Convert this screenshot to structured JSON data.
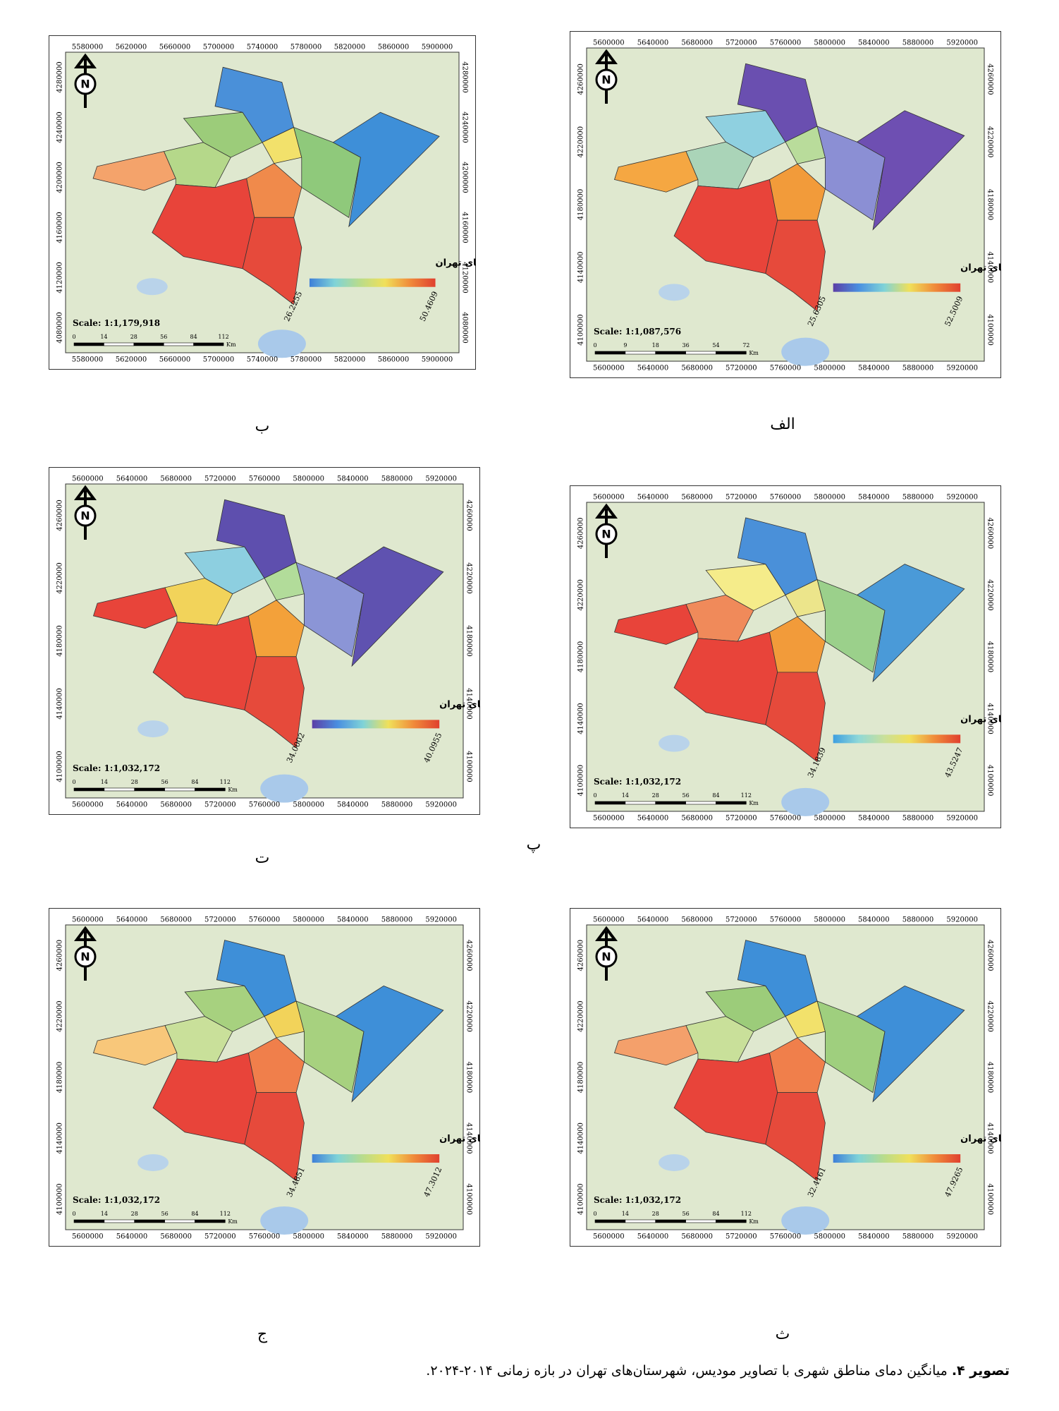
{
  "north_label": "N",
  "panels": [
    {
      "label": "الف",
      "x_ticks": [
        "5600000",
        "5640000",
        "5680000",
        "5720000",
        "5760000",
        "5800000",
        "5840000",
        "5880000",
        "5920000"
      ],
      "y_ticks": [
        "4260000",
        "4220000",
        "4180000",
        "4140000",
        "4100000"
      ],
      "legend_title": "دمای منطقه‌ای شهرستان های تهران",
      "legend_min": "25.6305",
      "legend_max": "52.5009",
      "legend_colors": [
        "#5b3ea6",
        "#4a8fe0",
        "#7fd3d8",
        "#f0e05a",
        "#f08a3a",
        "#e0402f"
      ],
      "scale": "Scale: 1:1,087,576",
      "scale_bar": [
        "0",
        "9",
        "18",
        "36",
        "54",
        "72"
      ],
      "unit": "Km",
      "colors": [
        "#f5a742",
        "#aad4b8",
        "#8fd0e0",
        "#6a4fb0",
        "#b9dc9b",
        "#8b8fd4",
        "#6e4fb2",
        "#e8443a",
        "#f29b3a",
        "#e64a3b"
      ]
    },
    {
      "label": "ب",
      "x_ticks": [
        "5580000",
        "5620000",
        "5660000",
        "5700000",
        "5740000",
        "5780000",
        "5820000",
        "5860000",
        "5900000"
      ],
      "y_ticks": [
        "4280000",
        "4240000",
        "4200000",
        "4160000",
        "4120000",
        "4080000"
      ],
      "legend_title": "دمای منطقه‌ای شهرستان های تهران",
      "legend_min": "26.2255",
      "legend_max": "50.4609",
      "legend_colors": [
        "#3e7fd8",
        "#7fd3d8",
        "#b9dc8b",
        "#f0e05a",
        "#f08a3a",
        "#e0402f"
      ],
      "scale": "Scale: 1:1,179,918",
      "scale_bar": [
        "0",
        "14",
        "28",
        "56",
        "84",
        "112"
      ],
      "unit": "Km",
      "colors": [
        "#f4a36b",
        "#b5d88a",
        "#9ccc7a",
        "#4a90d9",
        "#f2e16b",
        "#8fc97b",
        "#3e8fd8",
        "#e8443a",
        "#f08a4b",
        "#e64a3b"
      ]
    },
    {
      "label": "پ",
      "x_ticks": [
        "5600000",
        "5640000",
        "5680000",
        "5720000",
        "5760000",
        "5800000",
        "5840000",
        "5880000",
        "5920000"
      ],
      "y_ticks": [
        "4260000",
        "4220000",
        "4180000",
        "4140000",
        "4100000"
      ],
      "legend_title": "دمای منطقه‌ای شهرستان های تهران",
      "legend_min": "34.1839",
      "legend_max": "43.5247",
      "legend_colors": [
        "#3e9fe0",
        "#8fd8d8",
        "#c9e09a",
        "#f0e05a",
        "#f08a3a",
        "#e0402f"
      ],
      "scale": "Scale: 1:1,032,172",
      "scale_bar": [
        "0",
        "14",
        "28",
        "56",
        "84",
        "112"
      ],
      "unit": "Km",
      "colors": [
        "#e8443a",
        "#f08a5a",
        "#f5ec8a",
        "#4a90d9",
        "#ece58b",
        "#9bd08b",
        "#4a9ad8",
        "#e8443a",
        "#f29b3a",
        "#e64a3b"
      ]
    },
    {
      "label": "ت",
      "x_ticks": [
        "5600000",
        "5640000",
        "5680000",
        "5720000",
        "5760000",
        "5800000",
        "5840000",
        "5880000",
        "5920000"
      ],
      "y_ticks": [
        "4260000",
        "4220000",
        "4180000",
        "4140000",
        "4100000"
      ],
      "legend_title": "دمای منطقه‌ای شهرستان های تهران",
      "legend_min": "34.0002",
      "legend_max": "40.0955",
      "legend_colors": [
        "#5b3ea6",
        "#4a8fe0",
        "#7fd3d8",
        "#f0e05a",
        "#f08a3a",
        "#e0402f"
      ],
      "scale": "Scale: 1:1,032,172",
      "scale_bar": [
        "0",
        "14",
        "28",
        "56",
        "84",
        "112"
      ],
      "unit": "Km",
      "colors": [
        "#e8443a",
        "#f2d35a",
        "#8dcfe0",
        "#5e4fae",
        "#b2dc9a",
        "#8b95d6",
        "#5f52b0",
        "#e8443a",
        "#f3a13a",
        "#e64a3b"
      ]
    },
    {
      "label": "ث",
      "x_ticks": [
        "5600000",
        "5640000",
        "5680000",
        "5720000",
        "5760000",
        "5800000",
        "5840000",
        "5880000",
        "5920000"
      ],
      "y_ticks": [
        "4260000",
        "4220000",
        "4180000",
        "4140000",
        "4100000"
      ],
      "legend_title": "دمای منطقه‌ای شهرستان های تهران",
      "legend_min": "32.4161",
      "legend_max": "47.9265",
      "legend_colors": [
        "#3e7fd8",
        "#7fd3d8",
        "#b9dc8b",
        "#f0e05a",
        "#f08a3a",
        "#e0402f"
      ],
      "scale": "Scale: 1:1,032,172",
      "scale_bar": [
        "0",
        "14",
        "28",
        "56",
        "84",
        "112"
      ],
      "unit": "Km",
      "colors": [
        "#f4a06b",
        "#c9e09a",
        "#9ccc7a",
        "#3e8fd8",
        "#f2e16b",
        "#9fcf7e",
        "#3e8fd8",
        "#e8443a",
        "#f07f4b",
        "#e64a3b"
      ]
    },
    {
      "label": "ج",
      "x_ticks": [
        "5600000",
        "5640000",
        "5680000",
        "5720000",
        "5760000",
        "5800000",
        "5840000",
        "5880000",
        "5920000"
      ],
      "y_ticks": [
        "4260000",
        "4220000",
        "4180000",
        "4140000",
        "4100000"
      ],
      "legend_title": "دمای منطقه‌ای شهرستان های تهران",
      "legend_min": "34.4851",
      "legend_max": "47.3012",
      "legend_colors": [
        "#3e7fd8",
        "#7fd3d8",
        "#b9dc8b",
        "#f0e05a",
        "#f08a3a",
        "#e0402f"
      ],
      "scale": "Scale: 1:1,032,172",
      "scale_bar": [
        "0",
        "14",
        "28",
        "56",
        "84",
        "112"
      ],
      "unit": "Km",
      "colors": [
        "#f8c77a",
        "#c9e09a",
        "#a7d17f",
        "#3e8fd8",
        "#f2d35a",
        "#a7d17f",
        "#3e8fd8",
        "#e8443a",
        "#f07f4b",
        "#e64a3b"
      ]
    }
  ],
  "caption": {
    "label": "تصویر ۴.",
    "text": "میانگین دمای مناطق شهری با تصاویر مودیس، شهرستان‌های تهران در بازه زمانی ۲۰۱۴-۲۰۲۴."
  }
}
